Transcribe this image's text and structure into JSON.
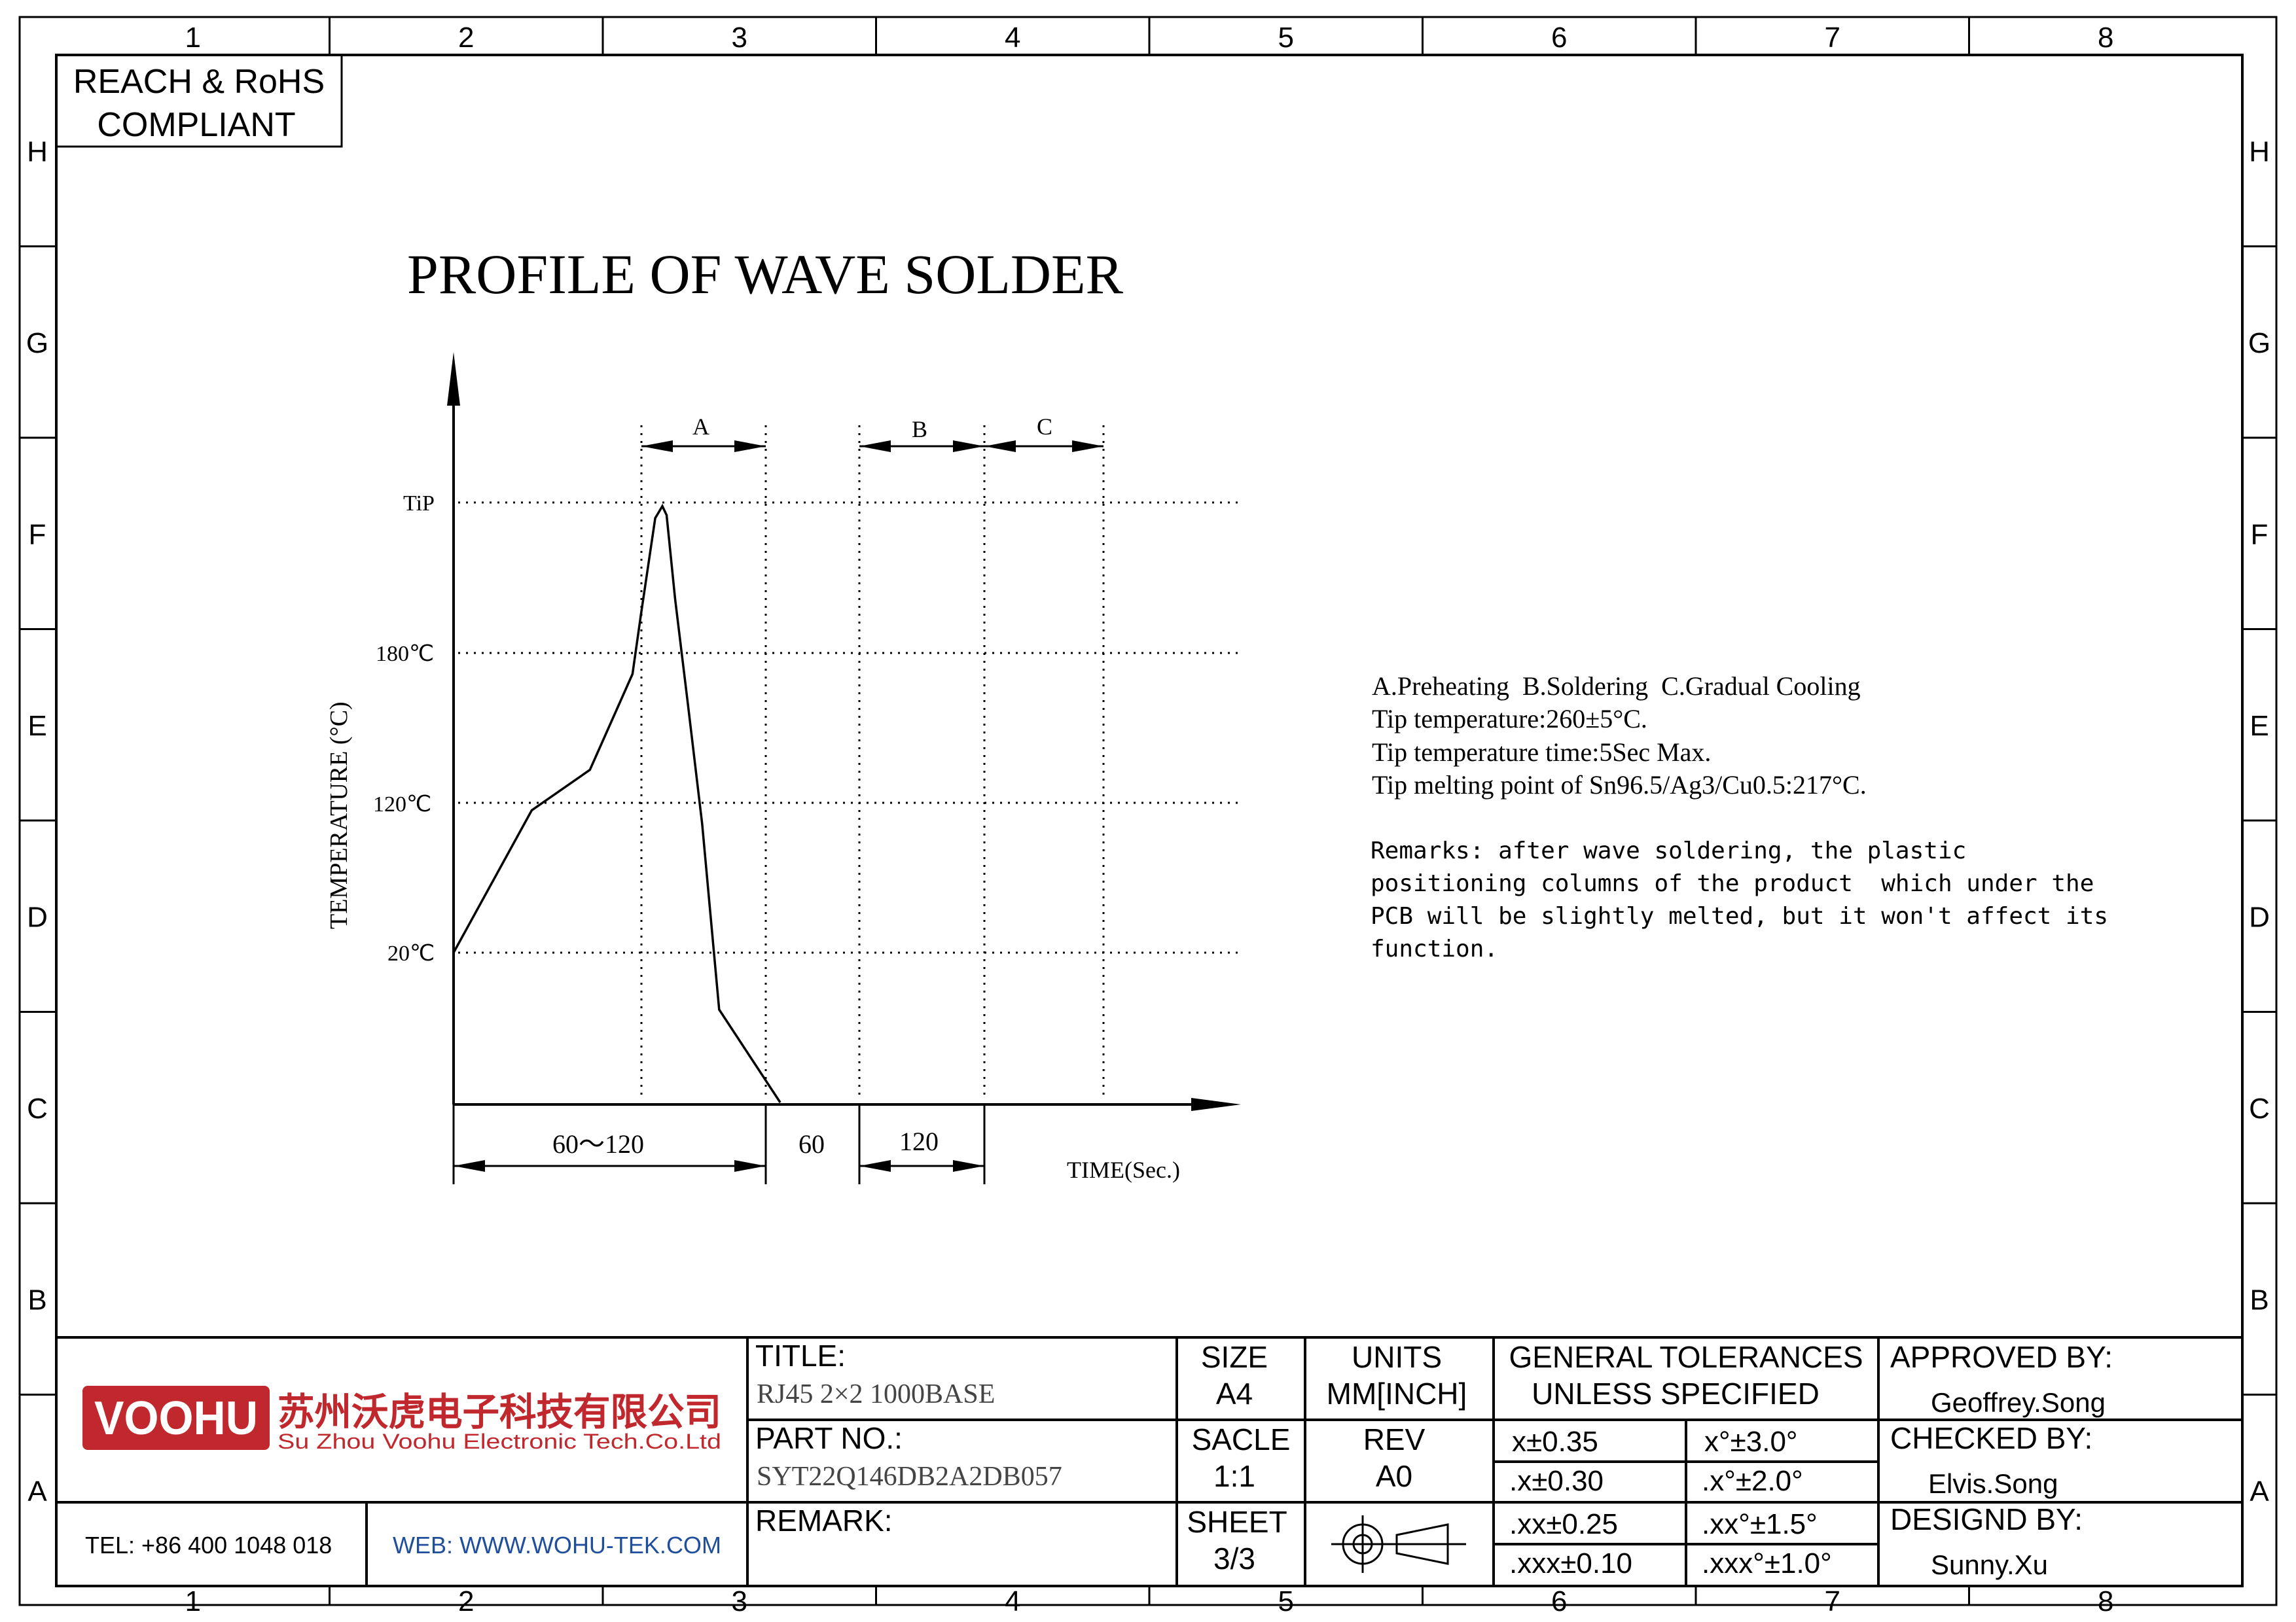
{
  "frame": {
    "columns": [
      "1",
      "2",
      "3",
      "4",
      "5",
      "6",
      "7",
      "8"
    ],
    "rows": [
      "H",
      "G",
      "F",
      "E",
      "D",
      "C",
      "B",
      "A"
    ]
  },
  "compliance": {
    "line1": "REACH & RoHS",
    "line2": "COMPLIANT"
  },
  "chart_data": {
    "type": "line",
    "title": "PROFILE OF WAVE SOLDER",
    "xlabel": "TIME(Sec.)",
    "ylabel": "TEMPERATURE (°C)",
    "y_ticks": [
      {
        "label": "20℃",
        "value": 20
      },
      {
        "label": "120℃",
        "value": 120
      },
      {
        "label": "180℃",
        "value": 180
      },
      {
        "label": "TiP",
        "value": 260
      }
    ],
    "phases": [
      "A",
      "B",
      "C"
    ],
    "time_spans": [
      "60～120",
      "60",
      "120"
    ],
    "profile": [
      {
        "x": 0,
        "y": 20
      },
      {
        "x": 55,
        "y": 115
      },
      {
        "x": 96,
        "y": 142
      },
      {
        "x": 126,
        "y": 206
      },
      {
        "x": 132,
        "y": 246
      },
      {
        "x": 142,
        "y": 310
      },
      {
        "x": 147,
        "y": 318
      },
      {
        "x": 150,
        "y": 312
      },
      {
        "x": 156,
        "y": 256
      },
      {
        "x": 165,
        "y": 186
      },
      {
        "x": 175,
        "y": 106
      },
      {
        "x": 187,
        "y": -18
      },
      {
        "x": 230,
        "y": -80
      }
    ]
  },
  "notes": {
    "lines": [
      "A.Preheating  B.Soldering  C.Gradual Cooling",
      "Tip temperature:260±5°C.",
      "Tip temperature time:5Sec Max.",
      "Tip melting point of Sn96.5/Ag3/Cu0.5:217°C."
    ],
    "remarks": [
      "Remarks: after wave soldering, the plastic",
      "positioning columns of the product  which under the",
      "PCB will be slightly melted, but it won't affect its",
      "function."
    ]
  },
  "title_block": {
    "logo_text": "VOOHU",
    "company_cn": "苏州沃虎电子科技有限公司",
    "company_en": "Su Zhou Voohu Electronic Tech.Co.Ltd",
    "tel": "TEL: +86 400 1048 018",
    "web": "WEB: WWW.WOHU-TEK.COM",
    "title_label": "TITLE:",
    "title_value": "RJ45 2×2 1000BASE",
    "part_label": "PART NO.:",
    "part_value": "SYT22Q146DB2A2DB057",
    "remark_label": "REMARK:",
    "size_label": "SIZE",
    "size_value": "A4",
    "units_label": "UNITS",
    "units_value": "MM[INCH]",
    "scale_label": "SACLE",
    "scale_value": "1:1",
    "rev_label": "REV",
    "rev_value": "A0",
    "sheet_label": "SHEET",
    "sheet_value": "3/3",
    "tol_title1": "GENERAL TOLERANCES",
    "tol_title2": "UNLESS SPECIFIED",
    "tol_linear": [
      "x±0.35",
      ".x±0.30",
      ".xx±0.25",
      ".xxx±0.10"
    ],
    "tol_angular": [
      "x°±3.0°",
      ".x°±2.0°",
      ".xx°±1.5°",
      ".xxx°±1.0°"
    ],
    "approved_label": "APPROVED BY:",
    "approved_name": "Geoffrey.Song",
    "checked_label": "CHECKED BY:",
    "checked_name": "Elvis.Song",
    "designed_label": "DESIGND BY:",
    "designed_name": "Sunny.Xu"
  },
  "colors": {
    "logo_red": "#c0282d",
    "web_blue": "#1f4e9c",
    "line": "#000000"
  }
}
